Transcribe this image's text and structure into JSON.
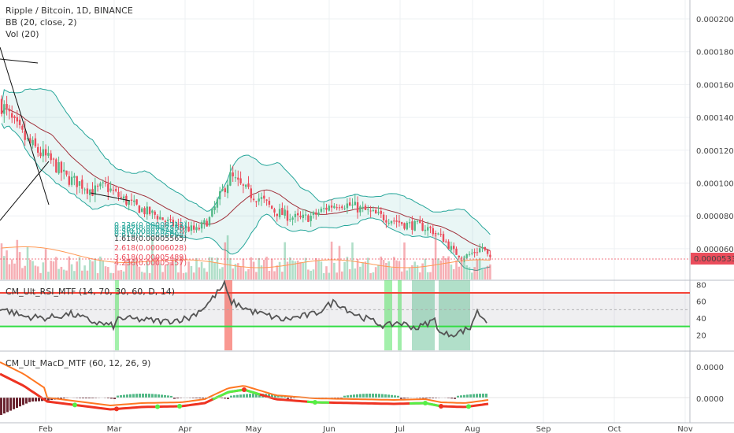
{
  "legend": {
    "title": "Ripple / Bitcoin, 1D, BINANCE",
    "bb": "BB (20, close, 2)",
    "vol": "Vol (20)",
    "rsi": "CM_Ult_RSI_MTF (14, 70, 30, 60, D, 14)",
    "macd": "CM_Ult_MacD_MTF (60, 12, 26, 9)"
  },
  "price_axis": [
    "0.00020000",
    "0.00018000",
    "0.00016000",
    "0.00014000",
    "0.00012000",
    "0.00010000",
    "0.00008000",
    "0.00006000"
  ],
  "last_price": "0.00005331",
  "rsi_axis": [
    "80",
    "60",
    "40",
    "20"
  ],
  "macd_axis": [
    "0.0000",
    "0.0000"
  ],
  "months": [
    "Feb",
    "Mar",
    "Apr",
    "May",
    "Jun",
    "Jul",
    "Aug",
    "Sep",
    "Oct",
    "Nov"
  ],
  "fib_labels": [
    "0.236(0.00008213)",
    "0.382(0.00007558)",
    "0.5(0.00007028)",
    "0.618(0.00006608)",
    "1.618(0.00005565)",
    "2.618(0.00006028)",
    "3.618(0.00005489)",
    "4.236(0.00005157)"
  ],
  "colors": {
    "up": "#53b987",
    "down": "#eb4d5c",
    "bb": "#26a69a",
    "basis": "#a0303a",
    "rsi_top": "#f44336",
    "rsi_bot": "#33dd44",
    "macd_fast": "#ff7722",
    "macd_slow": "#ee3322",
    "macd_green": "#55ee44"
  },
  "chart_data": {
    "type": "candlestick",
    "series_name": "XRP/BTC",
    "x_range": [
      "Jan 10",
      "Nov 1"
    ],
    "ylim": [
      3e-05,
      0.00022
    ],
    "close_path": [
      [
        0,
        0.000148
      ],
      [
        5,
        0.000135
      ],
      [
        10,
        0.000125
      ],
      [
        15,
        0.000118
      ],
      [
        20,
        0.000112
      ],
      [
        25,
        0.000103
      ],
      [
        30,
        0.0001
      ],
      [
        35,
        9.5e-05
      ],
      [
        40,
        9.8e-05
      ],
      [
        45,
        9.2e-05
      ],
      [
        50,
        8.7e-05
      ],
      [
        55,
        8.3e-05
      ],
      [
        60,
        8e-05
      ],
      [
        65,
        7.5e-05
      ],
      [
        70,
        7.3e-05
      ],
      [
        75,
        7.1e-05
      ],
      [
        80,
        7.8e-05
      ],
      [
        85,
        9.5e-05
      ],
      [
        88,
        0.000104
      ],
      [
        92,
        9.8e-05
      ],
      [
        96,
        9.3e-05
      ],
      [
        100,
        9e-05
      ],
      [
        105,
        8.3e-05
      ],
      [
        110,
        8e-05
      ],
      [
        115,
        7.8e-05
      ],
      [
        120,
        8e-05
      ],
      [
        125,
        8.5e-05
      ],
      [
        130,
        8.8e-05
      ],
      [
        135,
        8.6e-05
      ],
      [
        140,
        8.3e-05
      ],
      [
        145,
        8e-05
      ],
      [
        150,
        7.8e-05
      ],
      [
        155,
        7.5e-05
      ],
      [
        160,
        7.4e-05
      ],
      [
        165,
        7.2e-05
      ],
      [
        170,
        6.6e-05
      ],
      [
        174,
        5.8e-05
      ],
      [
        178,
        5.5e-05
      ],
      [
        182,
        5.8e-05
      ],
      [
        185,
        6.1e-05
      ],
      [
        188,
        5.3e-05
      ]
    ],
    "rsi_levels": {
      "upper": 70,
      "lower": 30,
      "mid": 50
    },
    "rsi_ylim": [
      10,
      85
    ]
  }
}
